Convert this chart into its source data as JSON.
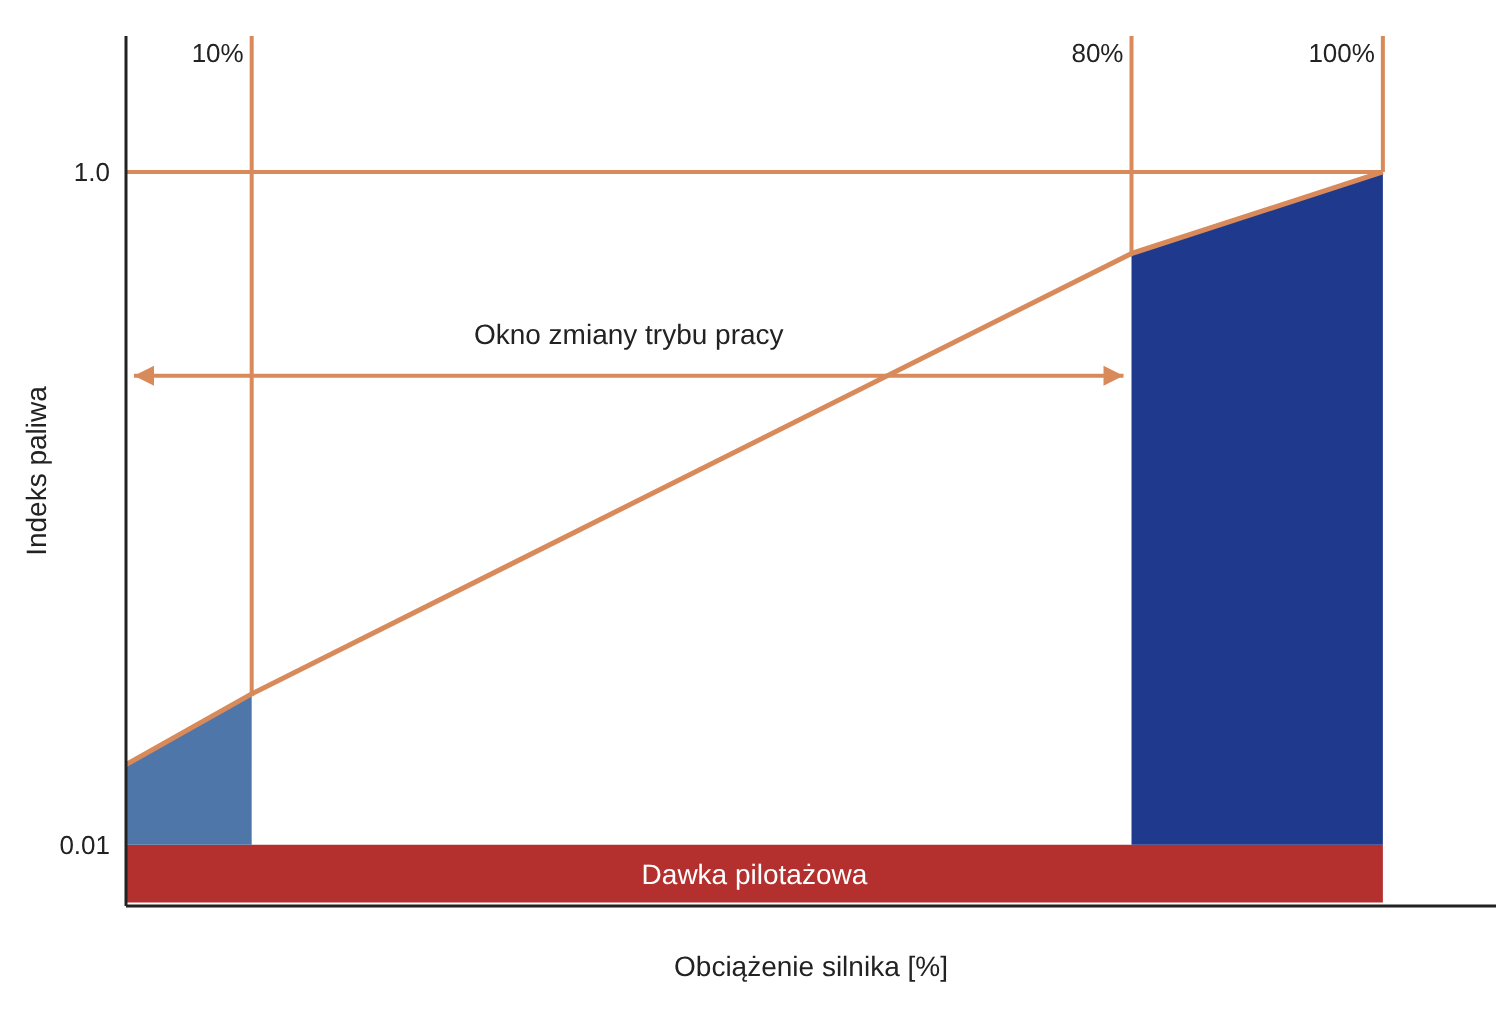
{
  "chart_data": {
    "type": "line",
    "xlabel": "Obciążenie silnika [%]",
    "ylabel": "Indeks paliwa",
    "xlim": [
      0,
      109
    ],
    "ylim": [
      -0.08,
      1.2
    ],
    "yticks": [
      0.01,
      {
        "value": 1,
        "label": "1.0"
      }
    ],
    "tick_labels": "y",
    "marker": "none",
    "line_style": "solid",
    "series": [
      {
        "type": "area",
        "color": "#4f76a8",
        "x": [
          0,
          10
        ],
        "values": [
          0.128,
          0.232
        ]
      },
      {
        "type": "area",
        "color": "#1f3a8c",
        "x": [
          80,
          100
        ],
        "values": [
          0.88,
          1.0
        ]
      },
      {
        "color": "#d98a5a",
        "x": [
          0,
          10,
          80,
          100
        ],
        "values": [
          0.128,
          0.232,
          0.88,
          1.0
        ]
      }
    ],
    "ref_lines": [
      {
        "axis": "x",
        "value": 10,
        "label": "10%",
        "color": "#d98a5a"
      },
      {
        "axis": "x",
        "value": 80,
        "label": "80%",
        "color": "#d98a5a"
      },
      {
        "axis": "x",
        "value": 100,
        "label": "100%",
        "color": "#d98a5a"
      },
      {
        "axis": "y",
        "value": 1,
        "color": "#d98a5a"
      },
      {
        "axis": "y",
        "value": 0.7,
        "label": "Okno zmiany trybu pracy",
        "color": "#d98a5a"
      }
    ],
    "bands": [
      {
        "axis": "y",
        "from": -0.075,
        "to": 0.01,
        "label": "Dawka pilotażowa",
        "color": "#b3302e"
      }
    ]
  }
}
